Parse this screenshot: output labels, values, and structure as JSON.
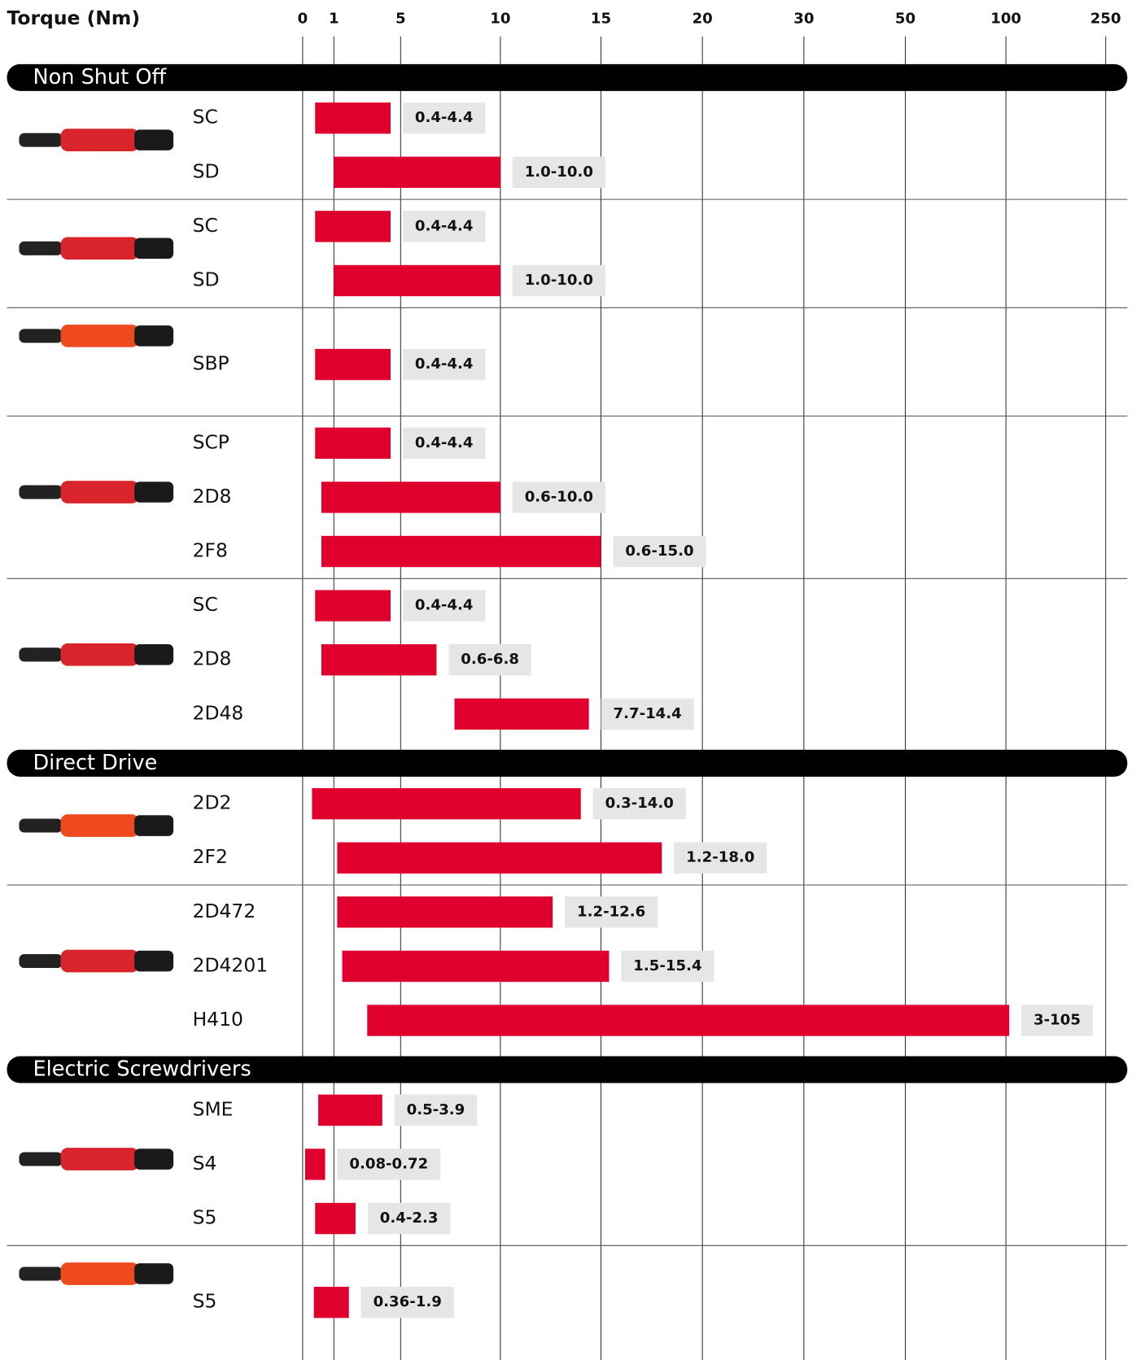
{
  "chart_data": {
    "type": "range-bar",
    "axis_title": "Torque (Nm)",
    "xlim": [
      0,
      250
    ],
    "xticks": [
      0,
      1,
      5,
      10,
      15,
      20,
      30,
      50,
      100,
      250
    ],
    "color": "#e0002d",
    "sections": [
      {
        "title": "Non Shut Off",
        "groups": [
          {
            "rows": [
              {
                "name": "SC",
                "low": 0.4,
                "high": 4.4,
                "label": "0.4-4.4"
              },
              {
                "name": "SD",
                "low": 1.0,
                "high": 10.0,
                "label": "1.0-10.0"
              }
            ]
          },
          {
            "rows": [
              {
                "name": "SC",
                "low": 0.4,
                "high": 4.4,
                "label": "0.4-4.4"
              },
              {
                "name": "SD",
                "low": 1.0,
                "high": 10.0,
                "label": "1.0-10.0"
              }
            ]
          },
          {
            "rows": [
              {
                "name": "SBP",
                "low": 0.4,
                "high": 4.4,
                "label": "0.4-4.4"
              }
            ]
          },
          {
            "rows": [
              {
                "name": "SCP",
                "low": 0.4,
                "high": 4.4,
                "label": "0.4-4.4"
              },
              {
                "name": "2D8",
                "low": 0.6,
                "high": 10.0,
                "label": "0.6-10.0"
              },
              {
                "name": "2F8",
                "low": 0.6,
                "high": 15.0,
                "label": "0.6-15.0"
              }
            ]
          },
          {
            "rows": [
              {
                "name": "SC",
                "low": 0.4,
                "high": 4.4,
                "label": "0.4-4.4"
              },
              {
                "name": "2D8",
                "low": 0.6,
                "high": 6.8,
                "label": "0.6-6.8"
              },
              {
                "name": "2D48",
                "low": 7.7,
                "high": 14.4,
                "label": "7.7-14.4"
              }
            ]
          }
        ]
      },
      {
        "title": "Direct Drive",
        "groups": [
          {
            "rows": [
              {
                "name": "2D2",
                "low": 0.3,
                "high": 14.0,
                "label": "0.3-14.0"
              },
              {
                "name": "2F2",
                "low": 1.2,
                "high": 18.0,
                "label": "1.2-18.0"
              }
            ]
          },
          {
            "rows": [
              {
                "name": "2D472",
                "low": 1.2,
                "high": 12.6,
                "label": "1.2-12.6"
              },
              {
                "name": "2D4201",
                "low": 1.5,
                "high": 15.4,
                "label": "1.5-15.4"
              },
              {
                "name": "H410",
                "low": 3,
                "high": 105,
                "label": "3-105"
              }
            ]
          }
        ]
      },
      {
        "title": "Electric Screwdrivers",
        "groups": [
          {
            "rows": [
              {
                "name": "SME",
                "low": 0.5,
                "high": 3.9,
                "label": "0.5-3.9"
              },
              {
                "name": "S4",
                "low": 0.08,
                "high": 0.72,
                "label": "0.08-0.72"
              },
              {
                "name": "S5",
                "low": 0.4,
                "high": 2.3,
                "label": "0.4-2.3"
              }
            ]
          },
          {
            "rows": [
              {
                "name": "S5",
                "low": 0.36,
                "high": 1.9,
                "label": "0.36-1.9"
              }
            ]
          }
        ]
      }
    ]
  }
}
